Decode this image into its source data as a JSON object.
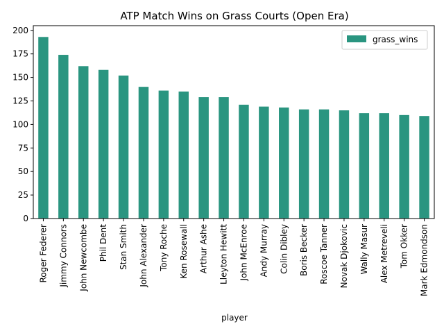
{
  "chart_data": {
    "type": "bar",
    "title": "ATP Match Wins on Grass Courts (Open Era)",
    "xlabel": "player",
    "ylabel": "",
    "ylim": [
      0,
      205
    ],
    "yticks": [
      0,
      25,
      50,
      75,
      100,
      125,
      150,
      175,
      200
    ],
    "grid": false,
    "legend_position": "top-right",
    "categories": [
      "Roger Federer",
      "Jimmy Connors",
      "John Newcombe",
      "Phil Dent",
      "Stan Smith",
      "John Alexander",
      "Tony Roche",
      "Ken Rosewall",
      "Arthur Ashe",
      "Lleyton Hewitt",
      "John McEnroe",
      "Andy Murray",
      "Colin Dibley",
      "Boris Becker",
      "Roscoe Tanner",
      "Novak Djokovic",
      "Wally Masur",
      "Alex Metreveli",
      "Tom Okker",
      "Mark Edmondson"
    ],
    "series": [
      {
        "name": "grass_wins",
        "color": "#2a9580",
        "values": [
          193,
          174,
          162,
          158,
          152,
          140,
          136,
          135,
          129,
          129,
          121,
          119,
          118,
          116,
          116,
          115,
          112,
          112,
          110,
          109
        ]
      }
    ]
  }
}
